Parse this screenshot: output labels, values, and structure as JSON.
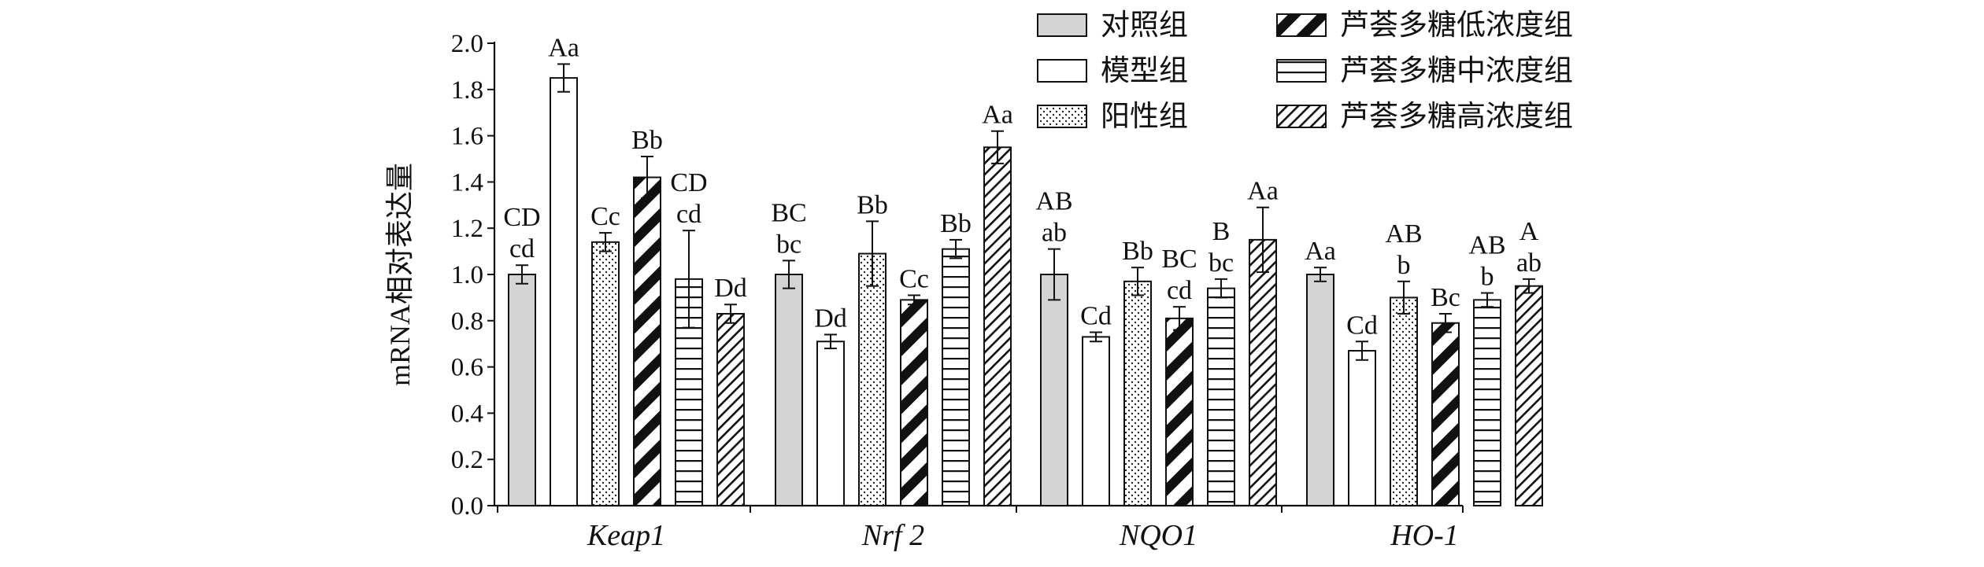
{
  "chart_data": {
    "type": "bar",
    "ylabel": "mRNA相对表达量",
    "xlabel": "",
    "ylim": [
      0,
      2.0
    ],
    "ytick_step": 0.2,
    "yticks": [
      "0.0",
      "0.2",
      "0.4",
      "0.6",
      "0.8",
      "1.0",
      "1.2",
      "1.4",
      "1.6",
      "1.8",
      "2.0"
    ],
    "categories": [
      "Keap1",
      "Nrf 2",
      "NQO1",
      "HO-1"
    ],
    "legend_position": "top-right",
    "series": [
      {
        "name": "对照组",
        "pattern": "solid-gray",
        "color": "#d4d4d4",
        "values": [
          1.0,
          1.0,
          1.0,
          1.0
        ],
        "errors": [
          0.04,
          0.06,
          0.11,
          0.03
        ],
        "labels": [
          "CD\ncd",
          "BC\nbc",
          "AB\nab",
          "Aa"
        ]
      },
      {
        "name": "模型组",
        "pattern": "blank",
        "color": "#ffffff",
        "values": [
          1.85,
          0.71,
          0.73,
          0.67
        ],
        "errors": [
          0.06,
          0.03,
          0.02,
          0.04
        ],
        "labels": [
          "Aa",
          "Dd",
          "Cd",
          "Cd"
        ]
      },
      {
        "name": "阳性组",
        "pattern": "dots",
        "color": "#ffffff",
        "values": [
          1.14,
          1.09,
          0.97,
          0.9
        ],
        "errors": [
          0.04,
          0.14,
          0.06,
          0.07
        ],
        "labels": [
          "Cc",
          "Bb",
          "Bb",
          "AB\nb"
        ]
      },
      {
        "name": "芦荟多糖低浓度组",
        "pattern": "thick-diagonal",
        "color": "#111111",
        "values": [
          1.42,
          0.89,
          0.81,
          0.79
        ],
        "errors": [
          0.09,
          0.02,
          0.05,
          0.04
        ],
        "labels": [
          "Bb",
          "Cc",
          "BC\ncd",
          "Bc"
        ]
      },
      {
        "name": "芦荟多糖中浓度组",
        "pattern": "horizontal",
        "color": "#111111",
        "values": [
          0.98,
          1.11,
          0.94,
          0.89
        ],
        "errors": [
          0.21,
          0.04,
          0.04,
          0.03
        ],
        "labels": [
          "CD\ncd",
          "Bb",
          "B\nbc",
          "AB\nb"
        ]
      },
      {
        "name": "芦荟多糖高浓度组",
        "pattern": "thin-diagonal",
        "color": "#111111",
        "values": [
          0.83,
          1.55,
          1.15,
          0.95
        ],
        "errors": [
          0.04,
          0.07,
          0.14,
          0.03
        ],
        "labels": [
          "Dd",
          "Aa",
          "Aa",
          "A\nab"
        ]
      }
    ]
  }
}
